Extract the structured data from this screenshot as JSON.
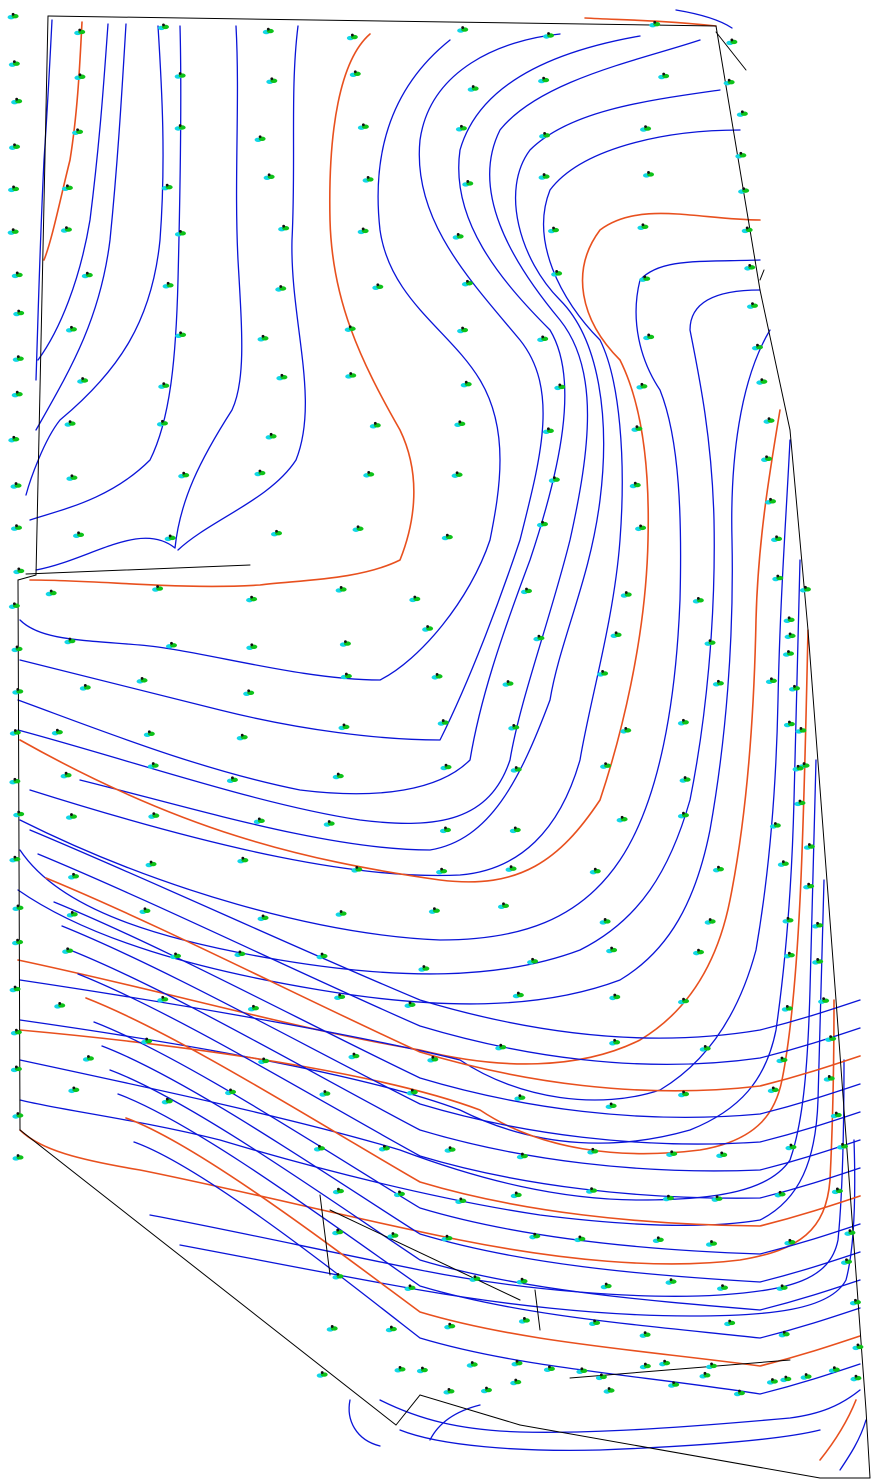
{
  "map": {
    "type": "topographic-contour-plan",
    "colors": {
      "background": "#ffffff",
      "minor_contour": "#0a14d8",
      "major_contour": "#e8501e",
      "boundary": "#000000",
      "survey_point_green": "#0ec21a",
      "survey_point_cyan": "#12d6e6",
      "survey_point_mark": "#111111"
    },
    "legend_words": [],
    "annotations": []
  }
}
